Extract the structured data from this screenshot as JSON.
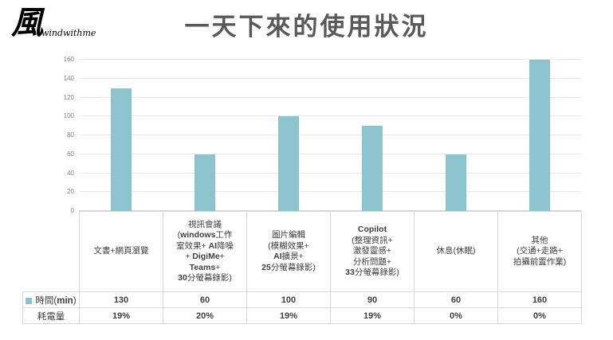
{
  "logo": {
    "glyph": "風",
    "text": "windwithme"
  },
  "title": "一天下來的使用狀況",
  "colors": {
    "bar": "#8CC3CD",
    "title": "#595959",
    "text": "#404040",
    "grid": "#E8E8E8",
    "zero": "#D0D0D0",
    "border": "#D8D8D8",
    "ylabel": "#7F7F7F",
    "logo": "#000000"
  },
  "chart_data": {
    "type": "bar",
    "title": "一天下來的使用狀況",
    "categories": [
      "文書+網頁瀏覽",
      "視訊會議\n(windows工作\n室效果+ AI降噪\n+ DigiMe+\nTeams+\n30分螢幕錄影)",
      "圖片編輯\n(模糊效果+\nAI擴景+\n25分螢幕錄影)",
      "Copilot\n(整理資訊+\n激發靈感+\n分析問題+\n33分螢幕錄影)",
      "休息(休眠)",
      "其他\n(交通+走路+\n拍攝前置作業)"
    ],
    "series": [
      {
        "name": "時間(min)",
        "values": [
          130,
          60,
          100,
          90,
          60,
          160
        ],
        "plotted": true,
        "legend_color": "#8CC3CD"
      },
      {
        "name": "耗電量",
        "values": [
          "19%",
          "20%",
          "19%",
          "19%",
          "0%",
          "0%"
        ],
        "plotted": false
      }
    ],
    "xlabel": "",
    "ylabel": "",
    "ylim": [
      0,
      160
    ],
    "yticks": [
      0,
      20,
      40,
      60,
      80,
      100,
      120,
      140,
      160
    ],
    "grid": true,
    "legend_position": "data-table"
  }
}
